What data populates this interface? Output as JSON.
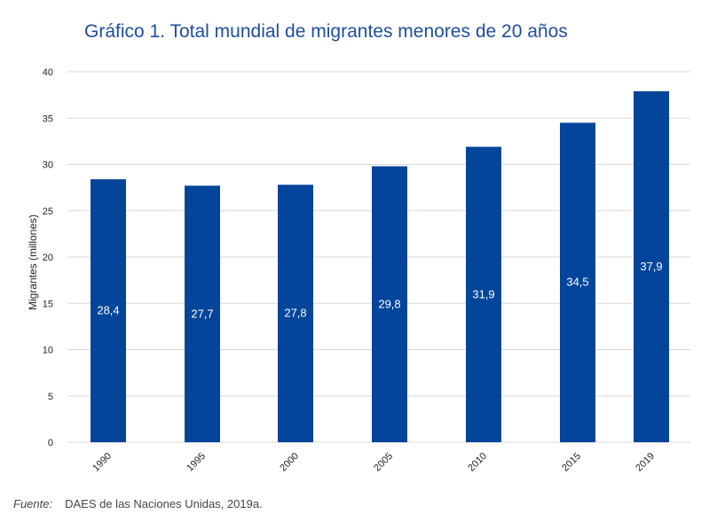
{
  "title": "Gráfico 1. Total mundial de migrantes menores de 20 años",
  "source": {
    "label": "Fuente:",
    "text": "DAES de las Naciones Unidas, 2019a."
  },
  "colors": {
    "bar": "#02459a",
    "grid": "#d9d9d9",
    "title": "#1f4e9c"
  },
  "chart_data": {
    "type": "bar",
    "title": "Gráfico 1. Total mundial de migrantes menores de 20 años",
    "xlabel": "",
    "ylabel": "Migrantes (millones)",
    "categories": [
      "1990",
      "1995",
      "2000",
      "2005",
      "2010",
      "2015",
      "2019"
    ],
    "values": [
      28.4,
      27.7,
      27.8,
      29.8,
      31.9,
      34.5,
      37.9
    ],
    "value_labels": [
      "28,4",
      "27,7",
      "27,8",
      "29,8",
      "31,9",
      "34,5",
      "37,9"
    ],
    "ylim": [
      0,
      40
    ],
    "yticks": [
      0,
      5,
      10,
      15,
      20,
      25,
      30,
      35,
      40
    ],
    "grid": true,
    "legend": "none"
  }
}
